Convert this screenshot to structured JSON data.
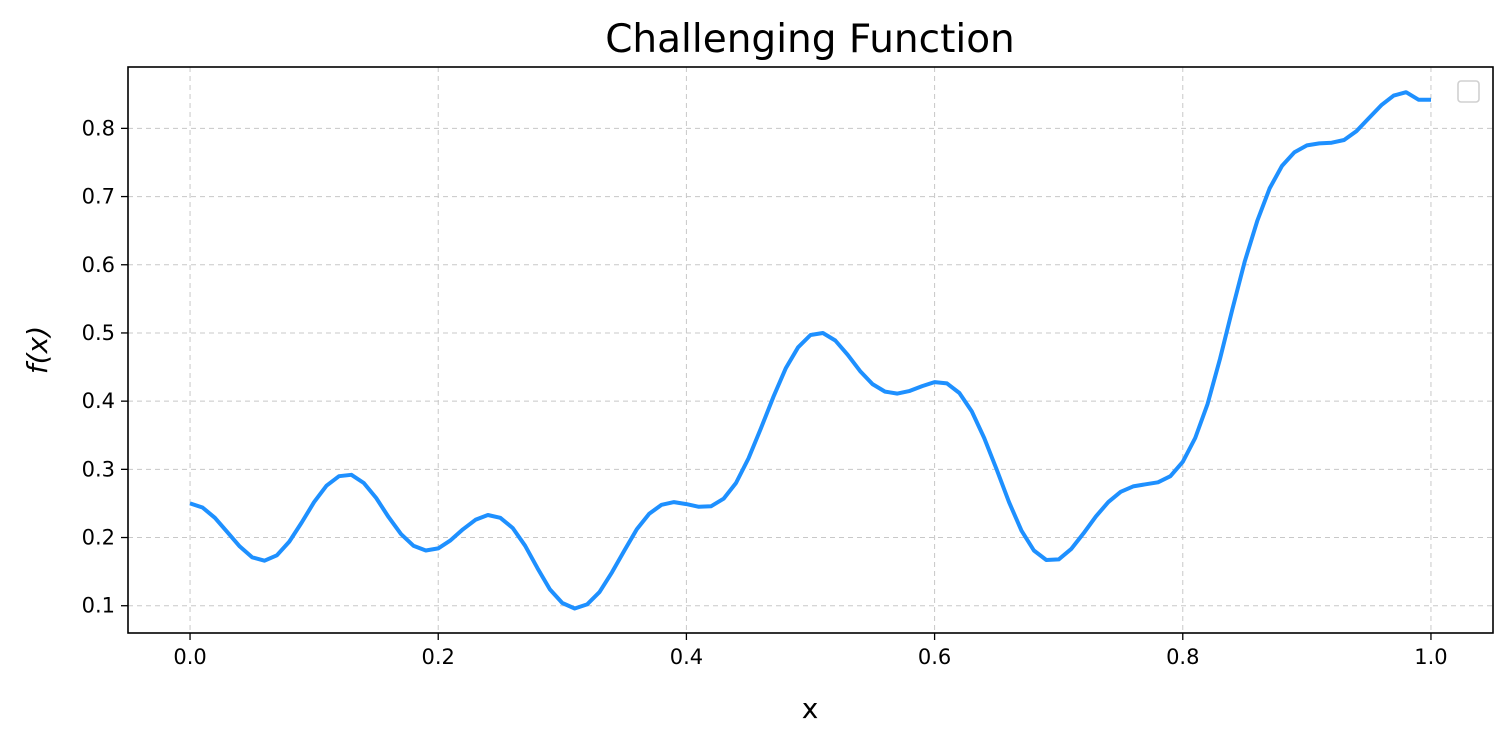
{
  "chart_data": {
    "type": "line",
    "title": "Challenging Function",
    "xlabel": "x",
    "ylabel": "f(x)",
    "xlim": [
      -0.05,
      1.05
    ],
    "ylim": [
      0.06,
      0.89
    ],
    "xticks": [
      0.0,
      0.2,
      0.4,
      0.6,
      0.8,
      1.0
    ],
    "xtick_labels": [
      "0.0",
      "0.2",
      "0.4",
      "0.6",
      "0.8",
      "1.0"
    ],
    "yticks": [
      0.1,
      0.2,
      0.3,
      0.4,
      0.5,
      0.6,
      0.7,
      0.8
    ],
    "ytick_labels": [
      "0.1",
      "0.2",
      "0.3",
      "0.4",
      "0.5",
      "0.6",
      "0.7",
      "0.8"
    ],
    "grid": true,
    "legend": "upper-right, empty",
    "color": "#1e90ff",
    "series": [
      {
        "x": [
          0.0,
          0.01,
          0.02,
          0.03,
          0.04,
          0.05,
          0.06,
          0.07,
          0.08,
          0.09,
          0.1,
          0.11,
          0.12,
          0.13,
          0.14,
          0.15,
          0.16,
          0.17,
          0.18,
          0.19,
          0.2,
          0.21,
          0.22,
          0.23,
          0.24,
          0.25,
          0.26,
          0.27,
          0.28,
          0.29,
          0.3,
          0.31,
          0.32,
          0.33,
          0.34,
          0.35,
          0.36,
          0.37,
          0.38,
          0.39,
          0.4,
          0.41,
          0.42,
          0.43,
          0.44,
          0.45,
          0.46,
          0.47,
          0.48,
          0.49,
          0.5,
          0.51,
          0.52,
          0.53,
          0.54,
          0.55,
          0.56,
          0.57,
          0.58,
          0.59,
          0.6,
          0.61,
          0.62,
          0.63,
          0.64,
          0.65,
          0.66,
          0.67,
          0.68,
          0.69,
          0.7,
          0.71,
          0.72,
          0.73,
          0.74,
          0.75,
          0.76,
          0.77,
          0.78,
          0.79,
          0.8,
          0.81,
          0.82,
          0.83,
          0.84,
          0.85,
          0.86,
          0.87,
          0.88,
          0.89,
          0.9,
          0.91,
          0.92,
          0.93,
          0.94,
          0.95,
          0.96,
          0.97,
          0.98,
          0.99,
          1.0
        ],
        "y": [
          0.25,
          0.244,
          0.229,
          0.208,
          0.187,
          0.171,
          0.166,
          0.174,
          0.194,
          0.222,
          0.252,
          0.276,
          0.29,
          0.292,
          0.28,
          0.258,
          0.23,
          0.205,
          0.188,
          0.181,
          0.184,
          0.196,
          0.212,
          0.226,
          0.233,
          0.229,
          0.214,
          0.188,
          0.155,
          0.124,
          0.104,
          0.096,
          0.102,
          0.12,
          0.149,
          0.181,
          0.212,
          0.235,
          0.248,
          0.252,
          0.249,
          0.245,
          0.246,
          0.257,
          0.28,
          0.316,
          0.36,
          0.406,
          0.448,
          0.479,
          0.497,
          0.5,
          0.489,
          0.468,
          0.444,
          0.425,
          0.414,
          0.411,
          0.415,
          0.422,
          0.428,
          0.426,
          0.412,
          0.385,
          0.346,
          0.3,
          0.252,
          0.21,
          0.181,
          0.167,
          0.168,
          0.183,
          0.206,
          0.231,
          0.252,
          0.267,
          0.275,
          0.278,
          0.281,
          0.29,
          0.311,
          0.346,
          0.396,
          0.462,
          0.535,
          0.605,
          0.664,
          0.712,
          0.745,
          0.765,
          0.775,
          0.778,
          0.779,
          0.783,
          0.796,
          0.815,
          0.834,
          0.848,
          0.853,
          0.842,
          0.842
        ]
      }
    ]
  }
}
